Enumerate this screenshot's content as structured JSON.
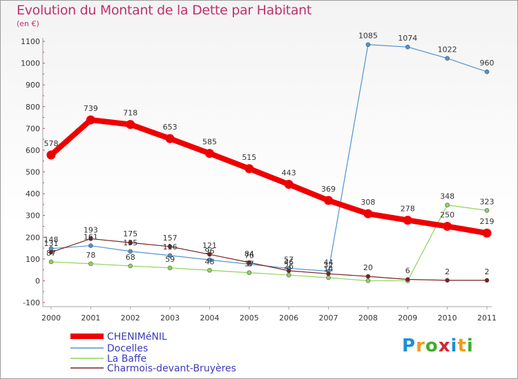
{
  "title": "Evolution du Montant de la Dette par Habitant",
  "subtitle": "(en €)",
  "logo": {
    "letters": [
      "P",
      "r",
      "o",
      "x",
      "i",
      "t",
      "i"
    ],
    "colors": [
      "#1d8fd6",
      "#f39a1c",
      "#3fae2a",
      "#d8252e",
      "#1d8fd6",
      "#f39a1c",
      "#3fae2a"
    ]
  },
  "chart_data": {
    "type": "line",
    "title": "Evolution du Montant de la Dette par Habitant",
    "ylabel": "(en €)",
    "xlabel": "",
    "x": [
      "2000",
      "2001",
      "2002",
      "2003",
      "2004",
      "2005",
      "2006",
      "2007",
      "2008",
      "2009",
      "2010",
      "2011"
    ],
    "ylim": [
      -100,
      1100
    ],
    "yticks": [
      "-100",
      "0",
      "100",
      "200",
      "300",
      "400",
      "500",
      "600",
      "700",
      "800",
      "900",
      "1000",
      "1100"
    ],
    "grid": false,
    "legend_position": "bottom-left",
    "series": [
      {
        "name": "CHENIMéNIL",
        "color": "#ee0000",
        "values": [
          578,
          739,
          718,
          653,
          585,
          515,
          443,
          369,
          308,
          278,
          250,
          219
        ],
        "labels": [
          "578",
          "739",
          "718",
          "653",
          "585",
          "515",
          "443",
          "369",
          "308",
          "278",
          "250",
          "219"
        ]
      },
      {
        "name": "Docelles",
        "color": "#4f93cf",
        "values": [
          148,
          161,
          135,
          116,
          96,
          76,
          57,
          44,
          1085,
          1074,
          1022,
          960
        ],
        "labels": [
          "148",
          "161",
          "135",
          "116",
          "96",
          "76",
          "57",
          "44",
          "1085",
          "1074",
          "1022",
          "960"
        ]
      },
      {
        "name": "La Baffe",
        "color": "#8ed35a",
        "values": [
          87,
          78,
          68,
          59,
          48,
          37,
          26,
          14,
          0,
          0,
          348,
          323
        ],
        "labels": [
          "87",
          "78",
          "68",
          "59",
          "48",
          "37",
          "26",
          "14",
          "",
          "",
          "348",
          "323"
        ]
      },
      {
        "name": "Charmois-devant-Bruyères",
        "color": "#7a2020",
        "values": [
          131,
          193,
          175,
          157,
          121,
          84,
          46,
          32,
          20,
          6,
          2,
          2
        ],
        "labels": [
          "131",
          "193",
          "175",
          "157",
          "121",
          "84",
          "46",
          "32",
          "20",
          "6",
          "2",
          "2"
        ]
      }
    ]
  }
}
